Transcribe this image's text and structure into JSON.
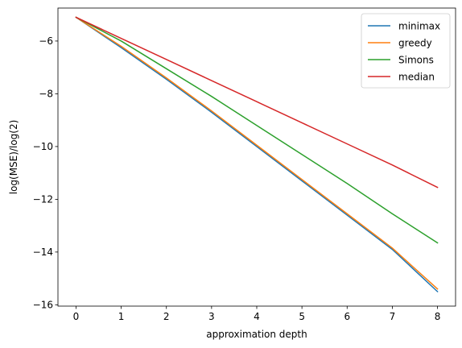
{
  "chart_data": {
    "type": "line",
    "title": "",
    "xlabel": "approximation depth",
    "ylabel": "log(MSE)/log(2)",
    "x": [
      0,
      1,
      2,
      3,
      4,
      5,
      6,
      7,
      8
    ],
    "xlim": [
      -0.4,
      8.4
    ],
    "ylim": [
      -16.05,
      -4.75
    ],
    "xticks": [
      0,
      1,
      2,
      3,
      4,
      5,
      6,
      7,
      8
    ],
    "yticks": [
      -16,
      -14,
      -12,
      -10,
      -8,
      -6
    ],
    "xtick_labels": [
      "0",
      "1",
      "2",
      "3",
      "4",
      "5",
      "6",
      "7",
      "8"
    ],
    "ytick_labels": [
      "−16",
      "−14",
      "−12",
      "−10",
      "−8",
      "−6"
    ],
    "grid": false,
    "legend_position": "top-right",
    "series": [
      {
        "name": "minimax",
        "color": "#1f77b4",
        "values": [
          -5.1,
          -6.25,
          -7.45,
          -8.7,
          -10.0,
          -11.3,
          -12.6,
          -13.9,
          -15.5
        ]
      },
      {
        "name": "greedy",
        "color": "#ff7f0e",
        "values": [
          -5.1,
          -6.2,
          -7.4,
          -8.65,
          -9.95,
          -11.25,
          -12.55,
          -13.85,
          -15.4
        ]
      },
      {
        "name": "Simons",
        "color": "#2ca02c",
        "values": [
          -5.1,
          -6.0,
          -7.05,
          -8.1,
          -9.2,
          -10.3,
          -11.4,
          -12.55,
          -13.65
        ]
      },
      {
        "name": "median",
        "color": "#d62728",
        "values": [
          -5.1,
          -5.9,
          -6.7,
          -7.5,
          -8.3,
          -9.1,
          -9.9,
          -10.7,
          -11.55
        ]
      }
    ]
  }
}
